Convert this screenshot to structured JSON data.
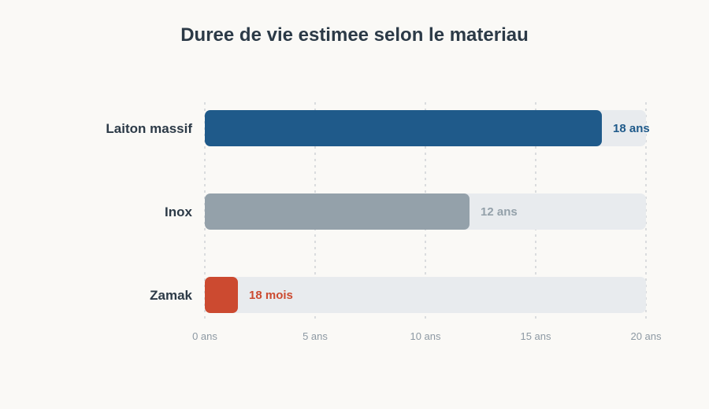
{
  "chart_data": {
    "type": "bar",
    "orientation": "horizontal",
    "title": "Duree de vie estimee selon le materiau",
    "xlabel": "",
    "ylabel": "",
    "xlim": [
      0,
      20
    ],
    "ticks": [
      {
        "value": 0,
        "label": "0 ans"
      },
      {
        "value": 5,
        "label": "5 ans"
      },
      {
        "value": 10,
        "label": "10 ans"
      },
      {
        "value": 15,
        "label": "15 ans"
      },
      {
        "value": 20,
        "label": "20 ans"
      }
    ],
    "grid": true,
    "categories": [
      "Laiton massif",
      "Inox",
      "Zamak"
    ],
    "values": [
      18,
      12,
      1.5
    ],
    "value_labels": [
      "18 ans",
      "12 ans",
      "18 mois"
    ],
    "colors": [
      "#1f5a8a",
      "#94a1aa",
      "#cc4a30"
    ],
    "label_colors": [
      "#1f5a8a",
      "#94a1aa",
      "#cc4a30"
    ],
    "track_color": "#e8ebee"
  }
}
